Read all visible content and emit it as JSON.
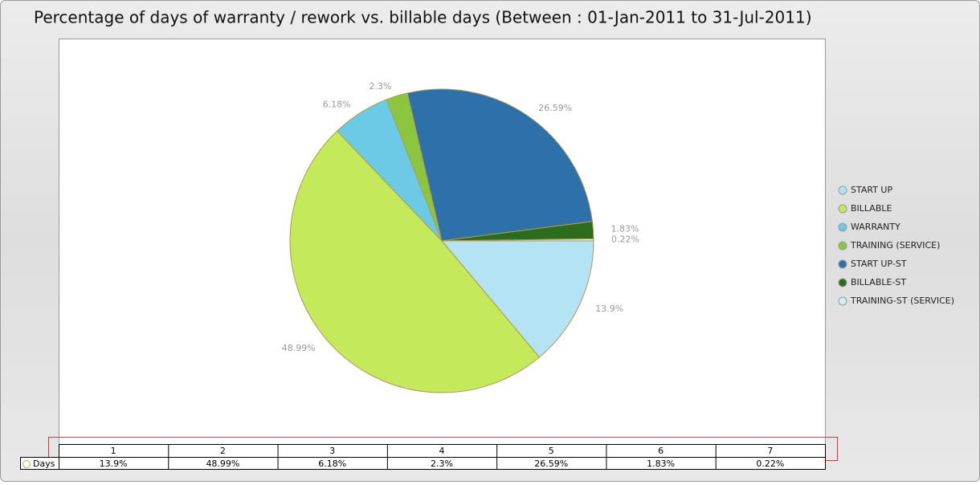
{
  "chart_data": {
    "type": "pie",
    "title": "Percentage of days of warranty / rework vs. billable days (Between : 01-Jan-2011 to 31-Jul-2011)",
    "categories": [
      "START UP",
      "BILLABLE",
      "WARRANTY",
      "TRAINING (SERVICE)",
      "START UP-ST",
      "BILLABLE-ST",
      "TRAINING-ST (SERVICE)"
    ],
    "values": [
      13.9,
      48.99,
      6.18,
      2.3,
      26.59,
      1.83,
      0.22
    ],
    "value_labels": [
      "13.9%",
      "48.99%",
      "6.18%",
      "2.3%",
      "26.59%",
      "1.83%",
      "0.22%"
    ],
    "colors": [
      "#b4e4f3",
      "#c4ea5c",
      "#6ccae6",
      "#8cc63e",
      "#2e70aa",
      "#2b6d1c",
      "#cfeef8"
    ],
    "legend": "right",
    "table": {
      "columns": [
        "1",
        "2",
        "3",
        "4",
        "5",
        "6",
        "7"
      ],
      "row_label": "Days"
    }
  }
}
